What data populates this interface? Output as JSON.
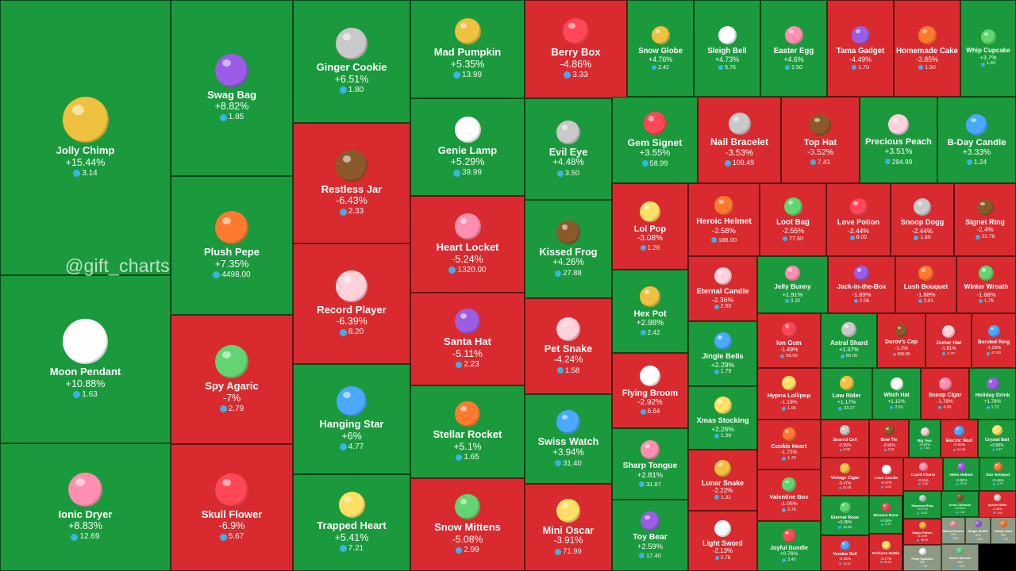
{
  "watermark": "@gift_charts",
  "colors": {
    "up": "#1a9a3c",
    "down": "#d92b2f",
    "gem": "#39b6f4",
    "flat": "#8c9a84"
  },
  "chart_data": {
    "type": "heatmap",
    "title": "",
    "currency_icon": "ton-diamond-icon",
    "gifts": [
      {
        "name": "Jolly Chimp",
        "change": "+15.44%",
        "price": "3.14"
      },
      {
        "name": "Moon Pendant",
        "change": "+10.88%",
        "price": "1.63"
      },
      {
        "name": "Ionic Dryer",
        "change": "+8.83%",
        "price": "12.69"
      },
      {
        "name": "Swag Bag",
        "change": "+8.82%",
        "price": "1.85"
      },
      {
        "name": "Plush Pepe",
        "change": "+7.35%",
        "price": "4498.00"
      },
      {
        "name": "Spy Agaric",
        "change": "-7%",
        "price": "2.79"
      },
      {
        "name": "Skull Flower",
        "change": "-6.9%",
        "price": "5.67"
      },
      {
        "name": "Ginger Cookie",
        "change": "+6.51%",
        "price": "1.80"
      },
      {
        "name": "Restless Jar",
        "change": "-6.43%",
        "price": "2.33"
      },
      {
        "name": "Record Player",
        "change": "-6.39%",
        "price": "8.20"
      },
      {
        "name": "Hanging Star",
        "change": "+6%",
        "price": "4.77"
      },
      {
        "name": "Trapped Heart",
        "change": "+5.41%",
        "price": "7.21"
      },
      {
        "name": "Mad Pumpkin",
        "change": "+5.35%",
        "price": "13.99"
      },
      {
        "name": "Genie Lamp",
        "change": "+5.29%",
        "price": "39.99"
      },
      {
        "name": "Heart Locket",
        "change": "-5.24%",
        "price": "1320.00"
      },
      {
        "name": "Santa Hat",
        "change": "-5.11%",
        "price": "2.23"
      },
      {
        "name": "Stellar Rocket",
        "change": "+5.1%",
        "price": "1.65"
      },
      {
        "name": "Snow Mittens",
        "change": "-5.08%",
        "price": "2.99"
      },
      {
        "name": "Berry Box",
        "change": "-4.86%",
        "price": "3.33"
      },
      {
        "name": "Evil Eye",
        "change": "+4.48%",
        "price": "3.50"
      },
      {
        "name": "Kissed Frog",
        "change": "+4.26%",
        "price": "27.88"
      },
      {
        "name": "Pet Snake",
        "change": "-4.24%",
        "price": "1.58"
      },
      {
        "name": "Swiss Watch",
        "change": "+3.94%",
        "price": "31.40"
      },
      {
        "name": "Mini Oscar",
        "change": "-3.91%",
        "price": "71.99"
      },
      {
        "name": "Snow Globe",
        "change": "+4.76%",
        "price": "2.42"
      },
      {
        "name": "Sleigh Bell",
        "change": "+4.73%",
        "price": "5.76"
      },
      {
        "name": "Easter Egg",
        "change": "+4.6%",
        "price": "2.50"
      },
      {
        "name": "Tama Gadget",
        "change": "-4.49%",
        "price": "1.70"
      },
      {
        "name": "Homemade Cake",
        "change": "-3.85%",
        "price": "1.50"
      },
      {
        "name": "Whip Cupcake",
        "change": "+3.7%",
        "price": "1.40"
      },
      {
        "name": "Gem Signet",
        "change": "+3.55%",
        "price": "58.99"
      },
      {
        "name": "Nail Bracelet",
        "change": "-3.53%",
        "price": "109.49"
      },
      {
        "name": "Top Hat",
        "change": "-3.52%",
        "price": "7.41"
      },
      {
        "name": "Precious Peach",
        "change": "+3.51%",
        "price": "294.99"
      },
      {
        "name": "B-Day Candle",
        "change": "+3.33%",
        "price": "1.24"
      },
      {
        "name": "Lol Pop",
        "change": "-3.08%",
        "price": "1.26"
      },
      {
        "name": "Hex Pot",
        "change": "+2.98%",
        "price": "2.42"
      },
      {
        "name": "Flying Broom",
        "change": "-2.92%",
        "price": "6.64"
      },
      {
        "name": "Sharp Tongue",
        "change": "+2.81%",
        "price": "31.87"
      },
      {
        "name": "Toy Bear",
        "change": "+2.59%",
        "price": "17.40"
      },
      {
        "name": "Heroic Helmet",
        "change": "-2.58%",
        "price": "188.00"
      },
      {
        "name": "Loot Bag",
        "change": "-2.55%",
        "price": "77.50"
      },
      {
        "name": "Love Potion",
        "change": "-2.44%",
        "price": "8.00"
      },
      {
        "name": "Snoop Dogg",
        "change": "-2.44%",
        "price": "1.80"
      },
      {
        "name": "Signet Ring",
        "change": "-2.4%",
        "price": "22.76"
      },
      {
        "name": "Eternal Candle",
        "change": "-2.36%",
        "price": "2.90"
      },
      {
        "name": "Jingle Bells",
        "change": "+2.29%",
        "price": "1.79"
      },
      {
        "name": "Xmas Stocking",
        "change": "+2.26%",
        "price": "1.36"
      },
      {
        "name": "Lunar Snake",
        "change": "-2.22%",
        "price": "1.32"
      },
      {
        "name": "Light Sword",
        "change": "-2.13%",
        "price": "2.76"
      },
      {
        "name": "Jelly Bunny",
        "change": "+1.91%",
        "price": "3.20"
      },
      {
        "name": "Jack-in-the-Box",
        "change": "-1.89%",
        "price": "2.06"
      },
      {
        "name": "Lush Bouquet",
        "change": "-1.88%",
        "price": "2.61"
      },
      {
        "name": "Winter Wreath",
        "change": "-1.68%",
        "price": "1.76"
      },
      {
        "name": "Ion Gem",
        "change": "-1.49%",
        "price": "68.00"
      },
      {
        "name": "Astral Shard",
        "change": "+1.37%",
        "price": "60.00"
      },
      {
        "name": "Durov's Cap",
        "change": "-1.2%",
        "price": "508.00"
      },
      {
        "name": "Jester Hat",
        "change": "-1.81%",
        "price": "1.70"
      },
      {
        "name": "Bonded Ring",
        "change": "-1.28%",
        "price": "47.00"
      },
      {
        "name": "Hypno Lollipop",
        "change": "-1.19%",
        "price": "1.66"
      },
      {
        "name": "Low Rider",
        "change": "+1.17%",
        "price": "23.27"
      },
      {
        "name": "Witch Hat",
        "change": "+1.15%",
        "price": "2.63"
      },
      {
        "name": "Snoop Cigar",
        "change": "-1.79%",
        "price": "4.40"
      },
      {
        "name": "Holiday Drink",
        "change": "+1.78%",
        "price": "1.72"
      },
      {
        "name": "Cookie Heart",
        "change": "-1.73%",
        "price": "1.76"
      },
      {
        "name": "Valentine Box",
        "change": "-1.05%",
        "price": "3.76"
      },
      {
        "name": "Joyful Bundle",
        "change": "+0.76%",
        "price": "3.45"
      },
      {
        "name": "Snared Cell",
        "change": "-0.99%",
        "price": "8.00"
      },
      {
        "name": "Bow Tie",
        "change": "-0.96%",
        "price": "3.38"
      },
      {
        "name": "Big Year",
        "change": "+0.67%",
        "price": "1.80"
      },
      {
        "name": "Electric Skull",
        "change": "-0.93%",
        "price": "24.98"
      },
      {
        "name": "Crystal Ball",
        "change": "+0.88%",
        "price": "3.47"
      },
      {
        "name": "Vintage Cigar",
        "change": "-0.47%",
        "price": "21.00"
      },
      {
        "name": "Love Candle",
        "change": "-0.47%",
        "price": "6.09"
      },
      {
        "name": "Cupid Charm",
        "change": "-0.22%",
        "price": "9.00"
      },
      {
        "name": "Neko Helmet",
        "change": "+0.92%",
        "price": "20.00"
      },
      {
        "name": "Star Notepad",
        "change": "+0.46%",
        "price": "1.75"
      },
      {
        "name": "Eternal Rose",
        "change": "+0.38%",
        "price": "13.99"
      },
      {
        "name": "Mousse Rose",
        "change": "+0.28%",
        "price": "2.49"
      },
      {
        "name": "Diamond Ring",
        "change": "+0.17%",
        "price": "10.87"
      },
      {
        "name": "Desk Calendar",
        "change": "+0.51%",
        "price": "1.34"
      },
      {
        "name": "Spiced Wine",
        "change": "-0.49%",
        "price": "1.80"
      },
      {
        "name": "Voodoo Doll",
        "change": "-0.26%",
        "price": "11.50"
      },
      {
        "name": "Perfume Bottle",
        "change": "-0.17%",
        "price": "59.90"
      },
      {
        "name": "Magic Potion",
        "change": "-0.03%",
        "price": "38.99"
      },
      {
        "name": "Party Sparkler",
        "change": "0%",
        "price": "1.45"
      },
      {
        "name": "Sakura Flower",
        "change": "0%",
        "price": "3.50"
      },
      {
        "name": "Ginger Muffin",
        "change": "0%",
        "price": "1.90"
      },
      {
        "name": "Candy Cane",
        "change": "0%",
        "price": "1.72"
      },
      {
        "name": "Sweet Sherbet",
        "change": "0%",
        "price": "3.10"
      }
    ]
  }
}
